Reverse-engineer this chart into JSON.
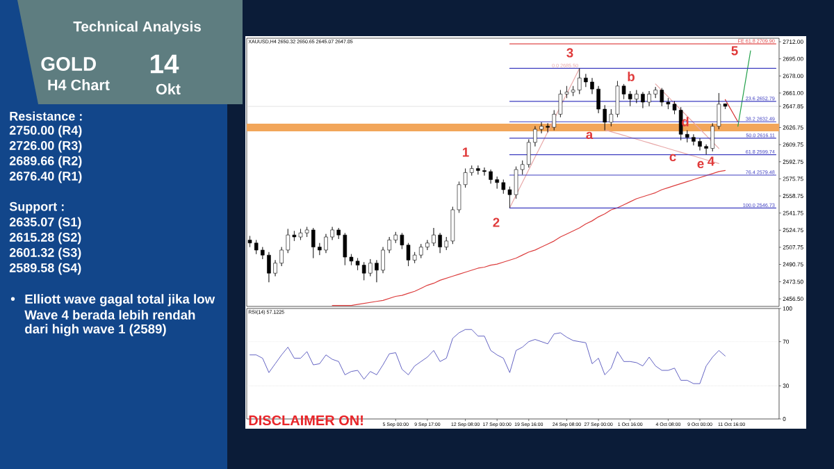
{
  "chart_data": [
    {
      "type": "other",
      "title": "Technical Analysis",
      "annotations": [
        "GOLD",
        "H4 Chart",
        "14",
        "Okt",
        "Resistance :",
        "2750.00 (R4)",
        "2726.00 (R3)",
        "2689.66 (R2)",
        "2676.40 (R1)",
        "Support :",
        "2635.07 (S1)",
        "2615.28 (S2)",
        "2601.32 (S3)",
        "2589.58 (S4)",
        "•",
        "Elliott wave gagal total jika low",
        "Wave 4 berada lebih rendah",
        "dari high wave 1 (2589)"
      ]
    },
    {
      "type": "candlestick",
      "title": "XAUUSD,H4 2650.32 2650.65 2645.07 2647.85",
      "color": "#000000",
      "ylim": [
        2449,
        2715.5
      ],
      "yticks": [
        {
          "value": 2712,
          "label": "2712.00"
        },
        {
          "value": 2695,
          "label": "2695.00"
        },
        {
          "value": 2678,
          "label": "2678.00"
        },
        {
          "value": 2661,
          "label": "2661.00"
        },
        {
          "value": 2647.85,
          "label": "2647.85"
        },
        {
          "value": 2626.75,
          "label": "2626.75"
        },
        {
          "value": 2609.75,
          "label": "2609.75"
        },
        {
          "value": 2592.75,
          "label": "2592.75"
        },
        {
          "value": 2575.75,
          "label": "2575.75"
        },
        {
          "value": 2558.75,
          "label": "2558.75"
        },
        {
          "value": 2541.75,
          "label": "2541.75"
        },
        {
          "value": 2524.75,
          "label": "2524.75"
        },
        {
          "value": 2507.75,
          "label": "2507.75"
        },
        {
          "value": 2490.75,
          "label": "2490.75"
        },
        {
          "value": 2473.5,
          "label": "2473.50"
        },
        {
          "value": 2456.5,
          "label": "2456.50"
        }
      ],
      "categories": [
        null,
        null,
        null,
        null,
        null,
        null,
        null,
        null,
        null,
        null,
        null,
        null,
        null,
        null,
        null,
        null,
        null,
        null,
        null,
        null,
        null,
        null,
        null,
        null,
        null,
        null,
        null,
        null,
        null,
        null,
        null,
        null,
        null,
        null,
        null,
        null,
        null,
        null,
        null,
        null,
        null,
        null,
        null,
        null,
        null,
        null,
        null,
        null,
        null,
        null,
        null,
        null,
        null,
        null,
        null,
        null,
        null,
        null,
        null,
        null,
        null,
        null,
        null,
        null,
        null,
        null,
        null,
        null,
        null,
        null,
        null,
        null,
        null,
        null,
        null,
        null,
        null,
        null,
        null,
        null,
        null,
        null,
        null,
        null
      ],
      "ohlc": [
        [
          2515,
          2519,
          2508,
          2512
        ],
        [
          2512,
          2515,
          2501,
          2505
        ],
        [
          2505,
          2508,
          2496,
          2500
        ],
        [
          2500,
          2503,
          2473,
          2482
        ],
        [
          2482,
          2495,
          2479,
          2492
        ],
        [
          2492,
          2508,
          2489,
          2505
        ],
        [
          2505,
          2526,
          2502,
          2520
        ],
        [
          2520,
          2524,
          2514,
          2518
        ],
        [
          2518,
          2526,
          2515,
          2522
        ],
        [
          2522,
          2528,
          2518,
          2525
        ],
        [
          2525,
          2527,
          2497,
          2508
        ],
        [
          2508,
          2512,
          2500,
          2505
        ],
        [
          2505,
          2521,
          2502,
          2518
        ],
        [
          2518,
          2528,
          2515,
          2525
        ],
        [
          2525,
          2527,
          2516,
          2520
        ],
        [
          2520,
          2522,
          2490,
          2498
        ],
        [
          2498,
          2501,
          2490,
          2494
        ],
        [
          2494,
          2497,
          2485,
          2490
        ],
        [
          2490,
          2493,
          2475,
          2482
        ],
        [
          2482,
          2496,
          2479,
          2492
        ],
        [
          2492,
          2495,
          2473,
          2485
        ],
        [
          2485,
          2508,
          2482,
          2505
        ],
        [
          2505,
          2518,
          2502,
          2515
        ],
        [
          2515,
          2523,
          2512,
          2520
        ],
        [
          2520,
          2522,
          2506,
          2510
        ],
        [
          2510,
          2512,
          2489,
          2495
        ],
        [
          2495,
          2503,
          2492,
          2500
        ],
        [
          2500,
          2511,
          2497,
          2508
        ],
        [
          2508,
          2515,
          2505,
          2512
        ],
        [
          2512,
          2527,
          2509,
          2520
        ],
        [
          2520,
          2522,
          2502,
          2508
        ],
        [
          2508,
          2518,
          2505,
          2514
        ],
        [
          2514,
          2548,
          2511,
          2545
        ],
        [
          2545,
          2573,
          2542,
          2570
        ],
        [
          2570,
          2586,
          2567,
          2582
        ],
        [
          2582,
          2589,
          2579,
          2586
        ],
        [
          2586,
          2589,
          2580,
          2584
        ],
        [
          2584,
          2587,
          2579,
          2583
        ],
        [
          2583,
          2585,
          2571,
          2575
        ],
        [
          2575,
          2578,
          2566,
          2572
        ],
        [
          2572,
          2575,
          2561,
          2565
        ],
        [
          2565,
          2568,
          2547,
          2560
        ],
        [
          2560,
          2588,
          2556,
          2585
        ],
        [
          2585,
          2594,
          2580,
          2590
        ],
        [
          2590,
          2615,
          2587,
          2612
        ],
        [
          2612,
          2628,
          2608,
          2625
        ],
        [
          2625,
          2632,
          2621,
          2628
        ],
        [
          2628,
          2631,
          2622,
          2627
        ],
        [
          2627,
          2644,
          2624,
          2640
        ],
        [
          2640,
          2664,
          2637,
          2660
        ],
        [
          2660,
          2668,
          2656,
          2662
        ],
        [
          2662,
          2668,
          2658,
          2664
        ],
        [
          2664,
          2685.5,
          2660,
          2676
        ],
        [
          2676,
          2680,
          2667,
          2672
        ],
        [
          2672,
          2676,
          2660,
          2665
        ],
        [
          2665,
          2668,
          2641,
          2645
        ],
        [
          2645,
          2649,
          2624,
          2632
        ],
        [
          2632,
          2645,
          2628,
          2640
        ],
        [
          2640,
          2673,
          2637,
          2668
        ],
        [
          2668,
          2670,
          2655,
          2660
        ],
        [
          2660,
          2663,
          2648,
          2655
        ],
        [
          2655,
          2664,
          2651,
          2660
        ],
        [
          2660,
          2662,
          2646,
          2652
        ],
        [
          2652,
          2663,
          2648,
          2660
        ],
        [
          2660,
          2667,
          2656,
          2664
        ],
        [
          2664,
          2666,
          2648,
          2652
        ],
        [
          2652,
          2656,
          2645,
          2650
        ],
        [
          2650,
          2653,
          2640,
          2644
        ],
        [
          2644,
          2647,
          2614,
          2620
        ],
        [
          2620,
          2624,
          2612,
          2617
        ],
        [
          2617,
          2620,
          2609,
          2613
        ],
        [
          2613,
          2616,
          2604,
          2608
        ],
        [
          2608,
          2610,
          2600,
          2606
        ],
        [
          2606,
          2631,
          2603,
          2628
        ],
        [
          2628,
          2661,
          2625,
          2650
        ],
        [
          2650.32,
          2650.65,
          2645.07,
          2647.85
        ],
        null,
        null,
        null,
        null,
        null,
        null,
        null,
        null
      ],
      "series": [
        {
          "type": "line",
          "color": "#dc3c3c",
          "values": [
            null,
            null,
            null,
            null,
            null,
            null,
            null,
            null,
            null,
            null,
            null,
            null,
            null,
            2450,
            2450,
            2450,
            2450,
            2451,
            2452,
            2453,
            2454,
            2455,
            2457,
            2459,
            2460,
            2462,
            2464,
            2467,
            2470,
            2472,
            2475,
            2477,
            2479,
            2481,
            2483,
            2485,
            2487,
            2488,
            2490,
            2491,
            2493,
            2495,
            2497,
            2500,
            2503,
            2505,
            2508,
            2511,
            2514,
            2518,
            2521,
            2524,
            2527,
            2531,
            2534,
            2538,
            2541,
            2545,
            2547,
            2550,
            2553,
            2556,
            2558,
            2560,
            2562,
            2565,
            2567,
            2569,
            2571,
            2573,
            2575,
            2577,
            2579,
            2581,
            2583,
            2584,
            null,
            null,
            null,
            null,
            null,
            null,
            null,
            null
          ]
        },
        {
          "type": "line",
          "color": "#e8a8a8",
          "values": [
            null,
            null,
            null,
            null,
            null,
            null,
            null,
            null,
            null,
            null,
            null,
            null,
            null,
            null,
            null,
            null,
            null,
            null,
            null,
            null,
            null,
            null,
            null,
            null,
            null,
            null,
            null,
            null,
            null,
            null,
            null,
            null,
            null,
            null,
            null,
            null,
            null,
            null,
            null,
            null,
            null,
            2547,
            2559.6,
            2572.2,
            2584.8,
            2597.4,
            2609.9,
            2622.5,
            2635.1,
            2647.7,
            2660.3,
            2672.9,
            2685.5,
            null,
            null,
            null,
            null,
            null,
            null,
            null,
            null,
            null,
            null,
            null,
            null,
            null,
            null,
            null,
            null,
            null,
            null,
            null,
            null,
            null,
            null,
            null,
            null,
            null,
            null,
            null,
            null,
            null,
            null,
            null
          ]
        },
        {
          "type": "line",
          "color": "#e8a8a8",
          "values": [
            null,
            null,
            null,
            null,
            null,
            null,
            null,
            null,
            null,
            null,
            null,
            null,
            null,
            null,
            null,
            null,
            null,
            null,
            null,
            null,
            null,
            null,
            null,
            null,
            null,
            null,
            null,
            null,
            null,
            null,
            null,
            null,
            null,
            null,
            null,
            null,
            null,
            null,
            null,
            null,
            null,
            null,
            null,
            null,
            null,
            null,
            null,
            null,
            null,
            null,
            null,
            null,
            null,
            null,
            null,
            null,
            2624.5,
            2622.6,
            2620.8,
            2618.9,
            2617.1,
            2615.2,
            2613.3,
            2611.5,
            2609.6,
            2607.8,
            2605.9,
            2604,
            2602.2,
            2600.3,
            2598.5,
            2596.6,
            2594.7,
            2592.9,
            2591,
            null,
            null,
            null,
            null,
            null,
            null,
            null,
            null,
            null
          ]
        },
        {
          "type": "line",
          "color": "#e8a8a8",
          "values": [
            null,
            null,
            null,
            null,
            null,
            null,
            null,
            null,
            null,
            null,
            null,
            null,
            null,
            null,
            null,
            null,
            null,
            null,
            null,
            null,
            null,
            null,
            null,
            null,
            null,
            null,
            null,
            null,
            null,
            null,
            null,
            null,
            null,
            null,
            null,
            null,
            null,
            null,
            null,
            null,
            null,
            null,
            null,
            null,
            null,
            null,
            null,
            null,
            null,
            null,
            null,
            null,
            null,
            null,
            null,
            null,
            null,
            null,
            null,
            null,
            null,
            null,
            null,
            null,
            2670,
            2663.6,
            2657.2,
            2650.8,
            2644.4,
            2638,
            2631.6,
            2625.2,
            2618.8,
            2612.4,
            2606,
            null,
            null,
            null,
            null,
            null,
            null,
            null,
            null,
            null
          ]
        },
        {
          "type": "line",
          "color": "#d42a2a",
          "values": [
            null,
            null,
            null,
            null,
            null,
            null,
            null,
            null,
            null,
            null,
            null,
            null,
            null,
            null,
            null,
            null,
            null,
            null,
            null,
            null,
            null,
            null,
            null,
            null,
            null,
            null,
            null,
            null,
            null,
            null,
            null,
            null,
            null,
            null,
            null,
            null,
            null,
            null,
            null,
            null,
            null,
            null,
            null,
            null,
            null,
            null,
            null,
            null,
            null,
            null,
            null,
            null,
            null,
            null,
            null,
            null,
            null,
            null,
            null,
            null,
            null,
            null,
            null,
            null,
            null,
            null,
            null,
            null,
            null,
            null,
            null,
            null,
            null,
            null,
            null,
            2654.5,
            2643.5,
            2632.5,
            null,
            null,
            null,
            null,
            null,
            null
          ]
        },
        {
          "type": "line",
          "color": "#22a04a",
          "values": [
            null,
            null,
            null,
            null,
            null,
            null,
            null,
            null,
            null,
            null,
            null,
            null,
            null,
            null,
            null,
            null,
            null,
            null,
            null,
            null,
            null,
            null,
            null,
            null,
            null,
            null,
            null,
            null,
            null,
            null,
            null,
            null,
            null,
            null,
            null,
            null,
            null,
            null,
            null,
            null,
            null,
            null,
            null,
            null,
            null,
            null,
            null,
            null,
            null,
            null,
            null,
            null,
            null,
            null,
            null,
            null,
            null,
            null,
            null,
            null,
            null,
            null,
            null,
            null,
            null,
            null,
            null,
            null,
            null,
            null,
            null,
            null,
            null,
            null,
            null,
            null,
            null,
            2628,
            2665.5,
            2703,
            null,
            null,
            null,
            null
          ]
        },
        {
          "type": "line",
          "color": "#e04848",
          "values": [
            null,
            null,
            null,
            null,
            null,
            null,
            null,
            null,
            null,
            null,
            null,
            null,
            null,
            null,
            null,
            null,
            null,
            null,
            null,
            null,
            null,
            null,
            null,
            null,
            null,
            null,
            null,
            null,
            null,
            null,
            null,
            null,
            null,
            null,
            null,
            null,
            null,
            null,
            null,
            null,
            null,
            2709.9,
            2709.9,
            2709.9,
            2709.9,
            2709.9,
            2709.9,
            2709.9,
            2709.9,
            2709.9,
            2709.9,
            2709.9,
            2709.9,
            2709.9,
            2709.9,
            2709.9,
            2709.9,
            2709.9,
            2709.9,
            2709.9,
            2709.9,
            2709.9,
            2709.9,
            2709.9,
            2709.9,
            2709.9,
            2709.9,
            2709.9,
            2709.9,
            2709.9,
            2709.9,
            2709.9,
            2709.9,
            2709.9,
            2709.9,
            2709.9,
            2709.9,
            2709.9,
            2709.9,
            2709.9,
            2709.9,
            2709.9,
            2709.9,
            2709.9
          ]
        },
        {
          "type": "line",
          "color": "#3c3cc0",
          "values": [
            null,
            null,
            null,
            null,
            null,
            null,
            null,
            null,
            null,
            null,
            null,
            null,
            null,
            null,
            null,
            null,
            null,
            null,
            null,
            null,
            null,
            null,
            null,
            null,
            null,
            null,
            null,
            null,
            null,
            null,
            null,
            null,
            null,
            null,
            null,
            null,
            null,
            null,
            null,
            null,
            null,
            2685.5,
            2685.5,
            2685.5,
            2685.5,
            2685.5,
            2685.5,
            2685.5,
            2685.5,
            2685.5,
            2685.5,
            2685.5,
            2685.5,
            2685.5,
            2685.5,
            2685.5,
            2685.5,
            2685.5,
            2685.5,
            2685.5,
            2685.5,
            2685.5,
            2685.5,
            2685.5,
            2685.5,
            2685.5,
            2685.5,
            2685.5,
            2685.5,
            2685.5,
            2685.5,
            2685.5,
            2685.5,
            2685.5,
            2685.5,
            2685.5,
            2685.5,
            2685.5,
            2685.5,
            2685.5,
            2685.5,
            2685.5,
            2685.5,
            2685.5
          ]
        },
        {
          "type": "line",
          "color": "#3c3cc0",
          "values": [
            null,
            null,
            null,
            null,
            null,
            null,
            null,
            null,
            null,
            null,
            null,
            null,
            null,
            null,
            null,
            null,
            null,
            null,
            null,
            null,
            null,
            null,
            null,
            null,
            null,
            null,
            null,
            null,
            null,
            null,
            null,
            null,
            null,
            null,
            null,
            null,
            null,
            null,
            null,
            null,
            null,
            2652.79,
            2652.79,
            2652.79,
            2652.79,
            2652.79,
            2652.79,
            2652.79,
            2652.79,
            2652.79,
            2652.79,
            2652.79,
            2652.79,
            2652.79,
            2652.79,
            2652.79,
            2652.79,
            2652.79,
            2652.79,
            2652.79,
            2652.79,
            2652.79,
            2652.79,
            2652.79,
            2652.79,
            2652.79,
            2652.79,
            2652.79,
            2652.79,
            2652.79,
            2652.79,
            2652.79,
            2652.79,
            2652.79,
            2652.79,
            2652.79,
            2652.79,
            2652.79,
            2652.79,
            2652.79,
            2652.79,
            2652.79,
            2652.79,
            2652.79
          ]
        },
        {
          "type": "line",
          "color": "#3c3cc0",
          "values": [
            null,
            null,
            null,
            null,
            null,
            null,
            null,
            null,
            null,
            null,
            null,
            null,
            null,
            null,
            null,
            null,
            null,
            null,
            null,
            null,
            null,
            null,
            null,
            null,
            null,
            null,
            null,
            null,
            null,
            null,
            null,
            null,
            null,
            null,
            null,
            null,
            null,
            null,
            null,
            null,
            null,
            2632.49,
            2632.49,
            2632.49,
            2632.49,
            2632.49,
            2632.49,
            2632.49,
            2632.49,
            2632.49,
            2632.49,
            2632.49,
            2632.49,
            2632.49,
            2632.49,
            2632.49,
            2632.49,
            2632.49,
            2632.49,
            2632.49,
            2632.49,
            2632.49,
            2632.49,
            2632.49,
            2632.49,
            2632.49,
            2632.49,
            2632.49,
            2632.49,
            2632.49,
            2632.49,
            2632.49,
            2632.49,
            2632.49,
            2632.49,
            2632.49,
            2632.49,
            2632.49,
            2632.49,
            2632.49,
            2632.49,
            2632.49,
            2632.49,
            2632.49
          ]
        },
        {
          "type": "line",
          "color": "#3c3cc0",
          "values": [
            null,
            null,
            null,
            null,
            null,
            null,
            null,
            null,
            null,
            null,
            null,
            null,
            null,
            null,
            null,
            null,
            null,
            null,
            null,
            null,
            null,
            null,
            null,
            null,
            null,
            null,
            null,
            null,
            null,
            null,
            null,
            null,
            null,
            null,
            null,
            null,
            null,
            null,
            null,
            null,
            null,
            2616.11,
            2616.11,
            2616.11,
            2616.11,
            2616.11,
            2616.11,
            2616.11,
            2616.11,
            2616.11,
            2616.11,
            2616.11,
            2616.11,
            2616.11,
            2616.11,
            2616.11,
            2616.11,
            2616.11,
            2616.11,
            2616.11,
            2616.11,
            2616.11,
            2616.11,
            2616.11,
            2616.11,
            2616.11,
            2616.11,
            2616.11,
            2616.11,
            2616.11,
            2616.11,
            2616.11,
            2616.11,
            2616.11,
            2616.11,
            2616.11,
            2616.11,
            2616.11,
            2616.11,
            2616.11,
            2616.11,
            2616.11,
            2616.11,
            2616.11
          ]
        },
        {
          "type": "line",
          "color": "#3c3cc0",
          "values": [
            null,
            null,
            null,
            null,
            null,
            null,
            null,
            null,
            null,
            null,
            null,
            null,
            null,
            null,
            null,
            null,
            null,
            null,
            null,
            null,
            null,
            null,
            null,
            null,
            null,
            null,
            null,
            null,
            null,
            null,
            null,
            null,
            null,
            null,
            null,
            null,
            null,
            null,
            null,
            null,
            null,
            2599.74,
            2599.74,
            2599.74,
            2599.74,
            2599.74,
            2599.74,
            2599.74,
            2599.74,
            2599.74,
            2599.74,
            2599.74,
            2599.74,
            2599.74,
            2599.74,
            2599.74,
            2599.74,
            2599.74,
            2599.74,
            2599.74,
            2599.74,
            2599.74,
            2599.74,
            2599.74,
            2599.74,
            2599.74,
            2599.74,
            2599.74,
            2599.74,
            2599.74,
            2599.74,
            2599.74,
            2599.74,
            2599.74,
            2599.74,
            2599.74,
            2599.74,
            2599.74,
            2599.74,
            2599.74,
            2599.74,
            2599.74,
            2599.74,
            2599.74
          ]
        },
        {
          "type": "line",
          "color": "#3c3cc0",
          "values": [
            null,
            null,
            null,
            null,
            null,
            null,
            null,
            null,
            null,
            null,
            null,
            null,
            null,
            null,
            null,
            null,
            null,
            null,
            null,
            null,
            null,
            null,
            null,
            null,
            null,
            null,
            null,
            null,
            null,
            null,
            null,
            null,
            null,
            null,
            null,
            null,
            null,
            null,
            null,
            null,
            null,
            2579.48,
            2579.48,
            2579.48,
            2579.48,
            2579.48,
            2579.48,
            2579.48,
            2579.48,
            2579.48,
            2579.48,
            2579.48,
            2579.48,
            2579.48,
            2579.48,
            2579.48,
            2579.48,
            2579.48,
            2579.48,
            2579.48,
            2579.48,
            2579.48,
            2579.48,
            2579.48,
            2579.48,
            2579.48,
            2579.48,
            2579.48,
            2579.48,
            2579.48,
            2579.48,
            2579.48,
            2579.48,
            2579.48,
            2579.48,
            2579.48,
            2579.48,
            2579.48,
            2579.48,
            2579.48,
            2579.48,
            2579.48,
            2579.48,
            2579.48
          ]
        },
        {
          "type": "line",
          "color": "#3c3cc0",
          "values": [
            null,
            null,
            null,
            null,
            null,
            null,
            null,
            null,
            null,
            null,
            null,
            null,
            null,
            null,
            null,
            null,
            null,
            null,
            null,
            null,
            null,
            null,
            null,
            null,
            null,
            null,
            null,
            null,
            null,
            null,
            null,
            null,
            null,
            null,
            null,
            null,
            null,
            null,
            null,
            null,
            null,
            2546.73,
            2546.73,
            2546.73,
            2546.73,
            2546.73,
            2546.73,
            2546.73,
            2546.73,
            2546.73,
            2546.73,
            2546.73,
            2546.73,
            2546.73,
            2546.73,
            2546.73,
            2546.73,
            2546.73,
            2546.73,
            2546.73,
            2546.73,
            2546.73,
            2546.73,
            2546.73,
            2546.73,
            2546.73,
            2546.73,
            2546.73,
            2546.73,
            2546.73,
            2546.73,
            2546.73,
            2546.73,
            2546.73,
            2546.73,
            2546.73,
            2546.73,
            2546.73,
            2546.73,
            2546.73,
            2546.73,
            2546.73,
            2546.73,
            2546.73
          ]
        }
      ],
      "ref_lines": [
        {
          "axis": "y",
          "value": 2647.85,
          "color": "#c8c8c8"
        }
      ],
      "bands": [
        {
          "axis": "y",
          "from": 2623,
          "to": 2630.5,
          "color": "#f2a65a"
        }
      ],
      "annotations": [
        "1",
        "2",
        "3",
        "a",
        "b",
        "c",
        "d",
        "e",
        "4",
        "5",
        {
          "text": "FE 61.8 2709.90",
          "y": 2709.9
        },
        {
          "text": "0.0 2685.50",
          "y": 2685.5
        },
        {
          "text": "23.6 2652.79",
          "y": 2652.79
        },
        {
          "text": "38.2 2632.49",
          "y": 2632.49
        },
        {
          "text": "50.0 2616.11",
          "y": 2616.11
        },
        {
          "text": "61.8 2599.74",
          "y": 2599.74
        },
        {
          "text": "76.4 2579.48",
          "y": 2579.48
        },
        {
          "text": "100.0 2546.73",
          "y": 2546.73
        }
      ]
    },
    {
      "type": "line",
      "title": "RSI(14) 57.1225",
      "color": "#3c3cb4",
      "ylim": [
        0,
        100
      ],
      "yticks": [
        0,
        30,
        70,
        100
      ],
      "categories": [
        null,
        null,
        null,
        null,
        null,
        null,
        null,
        null,
        null,
        null,
        null,
        null,
        null,
        null,
        null,
        null,
        null,
        null,
        null,
        null,
        null,
        null,
        null,
        "5 Sep 00:00",
        null,
        null,
        null,
        null,
        "9 Sep 17:00",
        null,
        null,
        null,
        null,
        null,
        "12 Sep 08:00",
        null,
        null,
        null,
        null,
        "17 Sep 00:00",
        null,
        null,
        null,
        null,
        "19 Sep 16:00",
        null,
        null,
        null,
        null,
        null,
        "24 Sep 08:00",
        null,
        null,
        null,
        null,
        "27 Sep 00:00",
        null,
        null,
        null,
        null,
        "1 Oct 16:00",
        null,
        null,
        null,
        null,
        null,
        "4 Oct 08:00",
        null,
        null,
        null,
        null,
        "9 Oct 00:00",
        null,
        null,
        null,
        null,
        "11 Oct 16:00",
        null,
        null,
        null,
        null,
        null,
        null,
        null
      ],
      "values": [
        58,
        58,
        55,
        42,
        50,
        58,
        65,
        55,
        55,
        61,
        49,
        50,
        58,
        54,
        52,
        40,
        43,
        44,
        36,
        43,
        40,
        49,
        59,
        60,
        45,
        40,
        48,
        52,
        56,
        62,
        52,
        55,
        73,
        78,
        81,
        81,
        75,
        75,
        62,
        58,
        55,
        42,
        62,
        65,
        70,
        72,
        70,
        68,
        77,
        78,
        74,
        71,
        70,
        69,
        50,
        55,
        40,
        46,
        61,
        52,
        52,
        51,
        48,
        56,
        48,
        44,
        44,
        46,
        35,
        35,
        32,
        32,
        48,
        56,
        62,
        57,
        null,
        null,
        null,
        null,
        null,
        null,
        null,
        null
      ],
      "ref_lines": [
        {
          "axis": "y",
          "value": 70,
          "color": "#c8c8c8",
          "line_style": "dotted"
        },
        {
          "axis": "y",
          "value": 30,
          "color": "#c8c8c8",
          "line_style": "dotted"
        }
      ],
      "annotations": [
        "DISCLAIMER ON!"
      ]
    }
  ]
}
